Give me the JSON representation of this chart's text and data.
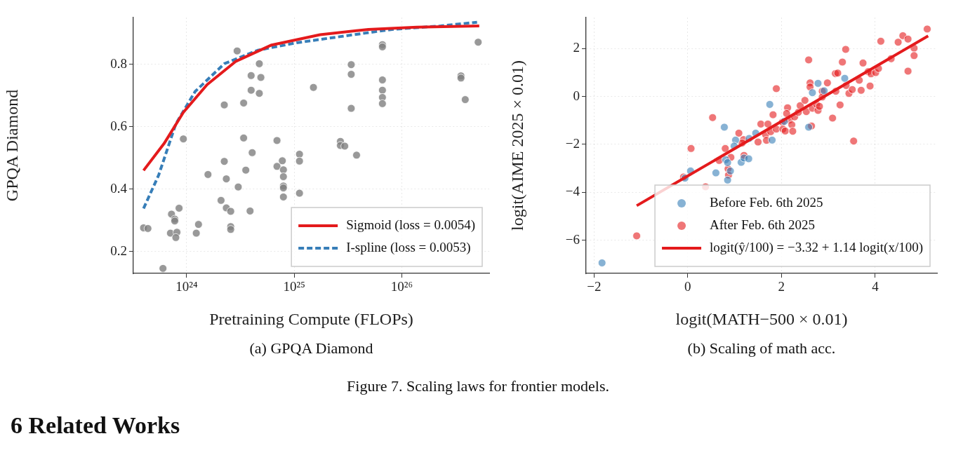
{
  "chart_data": [
    {
      "type": "scatter",
      "xlabel": "Pretraining Compute (FLOPs)",
      "ylabel": "GPQA Diamond",
      "log": "x",
      "xlim": [
        3.2e+23,
        6.5e+26
      ],
      "ylim": [
        0.13,
        0.95
      ],
      "xticks": [
        {
          "value": 1e+24,
          "label": "10²⁴"
        },
        {
          "value": 1e+25,
          "label": "10²⁵"
        },
        {
          "value": 1e+26,
          "label": "10²⁶"
        }
      ],
      "yticks": [
        0.2,
        0.4,
        0.6,
        0.8
      ],
      "grid": true,
      "legend": "bottom right",
      "annotations": [
        "(a) GPQA Diamond"
      ],
      "series": [
        {
          "type": "scatter",
          "marker": "circle",
          "color": "#808080",
          "x": [
            2.95e+24,
            4.74e+24,
            3.98e+24,
            4.9e+24,
            3.98e+24,
            4.74e+24,
            2.24e+24,
            3.39e+24,
            9.33e+23,
            3.39e+24,
            6.92e+24,
            4.07e+24,
            2.24e+24,
            7.76e+24,
            6.92e+24,
            3.55e+24,
            7.94e+24,
            1.58e+24,
            2.34e+24,
            7.94e+24,
            3.02e+24,
            7.94e+24,
            7.94e+24,
            1.12e+25,
            1.12e+25,
            1.12e+25,
            7.94e+24,
            2.09e+24,
            2.34e+24,
            2.57e+24,
            3.89e+24,
            8.51e+23,
            7.24e+23,
            7.76e+23,
            7.76e+23,
            1.29e+24,
            2.57e+24,
            2.57e+24,
            3.98e+23,
            4.37e+23,
            7.08e+23,
            8.13e+23,
            7.94e+23,
            1.23e+24,
            6.03e+23,
            1.51e+25,
            2.69e+25,
            2.69e+25,
            2.95e+25,
            3.8e+25,
            3.39e+25,
            3.39e+25,
            3.39e+25,
            6.61e+25,
            6.61e+25,
            6.61e+25,
            6.61e+25,
            6.61e+25,
            6.61e+25,
            3.55e+26,
            3.55e+26,
            3.89e+26,
            5.13e+26
          ],
          "values": [
            0.843,
            0.802,
            0.764,
            0.758,
            0.717,
            0.707,
            0.67,
            0.676,
            0.561,
            0.564,
            0.556,
            0.517,
            0.489,
            0.491,
            0.473,
            0.461,
            0.462,
            0.447,
            0.433,
            0.44,
            0.407,
            0.41,
            0.404,
            0.512,
            0.49,
            0.387,
            0.375,
            0.364,
            0.34,
            0.329,
            0.33,
            0.339,
            0.32,
            0.304,
            0.298,
            0.287,
            0.28,
            0.271,
            0.276,
            0.274,
            0.259,
            0.262,
            0.245,
            0.259,
            0.146,
            0.726,
            0.553,
            0.54,
            0.538,
            0.509,
            0.799,
            0.768,
            0.659,
            0.863,
            0.856,
            0.75,
            0.717,
            0.694,
            0.674,
            0.763,
            0.756,
            0.687,
            0.871
          ]
        },
        {
          "type": "line",
          "name": "Sigmoid (loss = 0.0054)",
          "color": "#e41a1c",
          "line_style": "solid",
          "x": [
            3.98e+23,
            6.17e+23,
            9.33e+23,
            1.55e+24,
            2.88e+24,
            6.17e+24,
            1.74e+25,
            4.9e+25,
            1.38e+26,
            5.25e+26
          ],
          "values": [
            0.46,
            0.546,
            0.646,
            0.735,
            0.81,
            0.862,
            0.895,
            0.912,
            0.919,
            0.923
          ]
        },
        {
          "type": "line",
          "name": "I-spline (loss = 0.0053)",
          "color": "#377eb8",
          "line_style": "dashed",
          "x": [
            3.98e+23,
            5.5e+23,
            7.94e+23,
            1.2e+24,
            2.24e+24,
            4.57e+24,
            1.05e+25,
            2.95e+25,
            8.13e+25,
            2.29e+26,
            5.01e+26
          ],
          "values": [
            0.338,
            0.445,
            0.609,
            0.713,
            0.802,
            0.845,
            0.869,
            0.891,
            0.912,
            0.923,
            0.935
          ]
        }
      ]
    },
    {
      "type": "scatter",
      "xlabel": "logit(MATH−500 × 0.01)",
      "ylabel": "logit(AIME 2025 × 0.01)",
      "xlim": [
        -2.17,
        5.32
      ],
      "ylim": [
        -7.39,
        3.3
      ],
      "xticks": [
        -2,
        0,
        2,
        4
      ],
      "yticks": [
        -6,
        -4,
        -2,
        0,
        2
      ],
      "grid": true,
      "legend": "bottom right",
      "annotations": [
        "(b) Scaling of math acc."
      ],
      "series": [
        {
          "type": "scatter",
          "marker": "circle",
          "name": "Before Feb. 6th 2025",
          "color": "#377eb8",
          "x": [
            -1.83,
            0.06,
            -0.06,
            0.6,
            0.78,
            0.81,
            0.85,
            0.85,
            0.91,
            1.02,
            0.99,
            1.14,
            1.2,
            1.3,
            1.31,
            1.45,
            1.75,
            1.8,
            2.06,
            2.58,
            2.66,
            2.78,
            2.91,
            3.35
          ],
          "values": [
            -6.95,
            -3.11,
            -3.41,
            -3.19,
            -1.28,
            -2.64,
            -2.76,
            -3.49,
            -3.11,
            -1.82,
            -2.07,
            -2.75,
            -2.57,
            -2.6,
            -1.75,
            -1.53,
            -0.33,
            -1.82,
            -1.04,
            -1.28,
            0.16,
            0.55,
            0.24,
            0.76
          ]
        },
        {
          "type": "scatter",
          "marker": "circle",
          "name": "After Feb. 6th 2025",
          "color": "#e41a1c",
          "x": [
            -1.09,
            -0.09,
            0.07,
            0.38,
            0.53,
            0.67,
            0.8,
            0.92,
            0.86,
            0.87,
            1.09,
            1.19,
            1.2,
            1.16,
            1.5,
            1.56,
            1.66,
            1.71,
            1.68,
            1.77,
            1.82,
            1.89,
            1.89,
            2.02,
            2.03,
            2.08,
            2.13,
            2.11,
            2.17,
            2.22,
            2.24,
            2.28,
            2.36,
            2.4,
            2.5,
            2.53,
            2.58,
            2.61,
            2.61,
            2.64,
            2.66,
            2.75,
            2.78,
            2.81,
            2.87,
            2.87,
            2.98,
            3.09,
            3.15,
            3.16,
            3.2,
            3.25,
            3.3,
            3.37,
            3.38,
            3.44,
            3.51,
            3.54,
            3.66,
            3.7,
            3.74,
            3.85,
            3.89,
            3.91,
            4.01,
            4.07,
            4.12,
            4.34,
            4.49,
            4.59,
            4.7,
            4.7,
            4.83,
            4.83,
            5.11
          ],
          "values": [
            -5.82,
            -3.36,
            -2.17,
            -3.77,
            -0.88,
            -2.67,
            -2.17,
            -2.54,
            -3.02,
            -3.28,
            -1.53,
            -1.8,
            -2.46,
            -1.94,
            -1.9,
            -1.15,
            -1.59,
            -1.15,
            -1.83,
            -1.47,
            -0.76,
            0.33,
            -1.36,
            -1.07,
            -1.36,
            -1.44,
            -0.47,
            -0.71,
            -0.98,
            -1.18,
            -1.45,
            -0.85,
            -0.66,
            -0.38,
            -0.16,
            -0.63,
            1.53,
            0.57,
            0.4,
            -1.23,
            -0.49,
            -0.33,
            -0.58,
            -0.41,
            0.22,
            -0.02,
            0.57,
            -0.9,
            0.96,
            0.22,
            0.98,
            -0.35,
            1.44,
            1.97,
            0.46,
            0.13,
            0.29,
            -1.86,
            0.68,
            0.26,
            1.4,
            1.04,
            0.44,
            0.95,
            1,
            1.17,
            2.31,
            1.58,
            2.27,
            2.54,
            1.06,
            2.4,
            2.02,
            1.71,
            2.82
          ]
        },
        {
          "type": "line",
          "name": "logit(ŷ/100) = −3.32 + 1.14 logit(x/100)",
          "color": "#e41a1c",
          "line_style": "solid",
          "x": [
            -1.09,
            5.13
          ],
          "values": [
            -4.56,
            2.53
          ]
        }
      ]
    },
    {
      "type": "other",
      "annotations": [
        "Figure 7. Scaling laws for frontier models.",
        "6 Related Works"
      ]
    }
  ]
}
